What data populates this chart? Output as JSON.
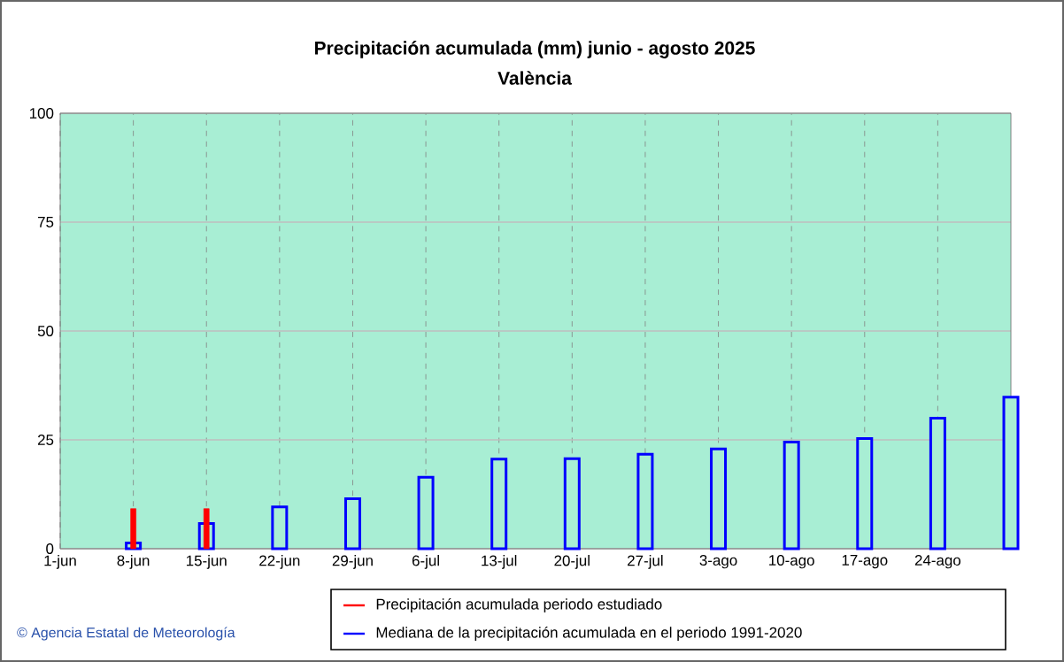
{
  "chart_data": {
    "type": "bar",
    "title": "Precipitación acumulada (mm) junio - agosto 2025",
    "subtitle": "València",
    "categories": [
      "1-jun",
      "8-jun",
      "15-jun",
      "22-jun",
      "29-jun",
      "6-jul",
      "13-jul",
      "20-jul",
      "27-jul",
      "3-ago",
      "10-ago",
      "17-ago",
      "24-ago",
      null
    ],
    "series": [
      {
        "name": "Precipitación acumulada periodo estudiado",
        "color": "#ff0000",
        "values": [
          null,
          9.2,
          9.2,
          null,
          null,
          null,
          null,
          null,
          null,
          null,
          null,
          null,
          null,
          null
        ]
      },
      {
        "name": "Mediana de la precipitación acumulada en el periodo 1991-2020",
        "color": "#0000ff",
        "values": [
          null,
          1.3,
          5.8,
          9.6,
          11.5,
          16.4,
          20.6,
          20.7,
          21.7,
          22.9,
          24.5,
          25.3,
          30,
          34.8
        ]
      }
    ],
    "ylim": [
      0,
      100
    ],
    "yticks": [
      0,
      25,
      50,
      75,
      100
    ],
    "grid": true,
    "legend": "bottom",
    "annotations": [
      "© Agencia Estatal de Meteorología"
    ]
  }
}
